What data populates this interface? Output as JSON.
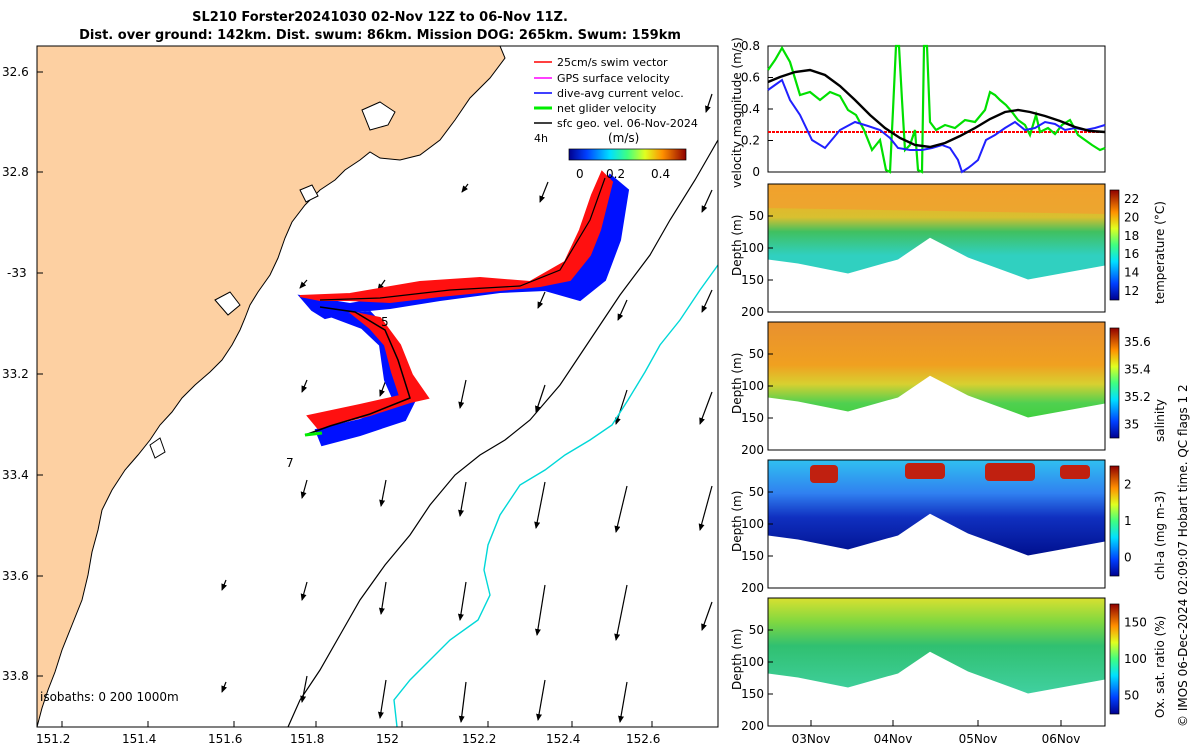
{
  "header": {
    "title": "SL210 Forster20241030 02-Nov 12Z to 06-Nov 11Z.",
    "subtitle": "Dist. over ground: 142km. Dist. swum: 86km. Mission DOG: 265km. Swum: 159km"
  },
  "map": {
    "lon_ticks": [
      "151.2",
      "151.4",
      "151.6",
      "151.8",
      "152",
      "152.2",
      "152.4",
      "152.6"
    ],
    "lat_ticks": [
      "32.6",
      "32.8",
      "-33",
      "33.2",
      "33.4",
      "33.6",
      "33.8"
    ],
    "legend": [
      {
        "label": "25cm/s swim vector",
        "color": "#ff0000"
      },
      {
        "label": "GPS surface velocity",
        "color": "#ff00ff"
      },
      {
        "label": "dive-avg current veloc.",
        "color": "#0000ff"
      },
      {
        "label": "net glider velocity",
        "color": "#00ee00"
      },
      {
        "label": "sfc geo. vel. 06-Nov-2024",
        "color": "#000000"
      }
    ],
    "time_step_label": "4h",
    "colorbar_unit": "(m/s)",
    "colorbar_ticks": [
      "0",
      "0.2",
      "0.4"
    ],
    "isobaths_label": "isobaths: 0   200  1000m",
    "track_labels": [
      "5",
      "7"
    ],
    "land_color": "#fdd0a2"
  },
  "velocity_panel": {
    "ylabel": "velocity magnitude (m/s)",
    "yticks": [
      "0",
      "0.2",
      "0.4",
      "0.6",
      "0.8"
    ]
  },
  "profiles": [
    {
      "id": "temperature",
      "cbar_label": "temperature (°C)",
      "cbar_ticks": [
        "12",
        "14",
        "16",
        "18",
        "20",
        "22"
      ]
    },
    {
      "id": "salinity",
      "cbar_label": "salinity",
      "cbar_ticks": [
        "35",
        "35.2",
        "35.4",
        "35.6"
      ]
    },
    {
      "id": "chla",
      "cbar_label": "chl-a (mg m-3)",
      "cbar_ticks": [
        "0",
        "1",
        "2"
      ]
    },
    {
      "id": "oxygen",
      "cbar_label": "Ox. sat. ratio (%)",
      "cbar_ticks": [
        "50",
        "100",
        "150"
      ]
    }
  ],
  "depth_axis": {
    "label": "Depth (m)",
    "ticks": [
      "50",
      "100",
      "150",
      "200"
    ]
  },
  "time_axis": {
    "ticks": [
      "03Nov",
      "04Nov",
      "05Nov",
      "06Nov"
    ]
  },
  "credit": "© IMOS 06-Dec-2024 02:09:07 Hobart time. QC flags 1  2"
}
